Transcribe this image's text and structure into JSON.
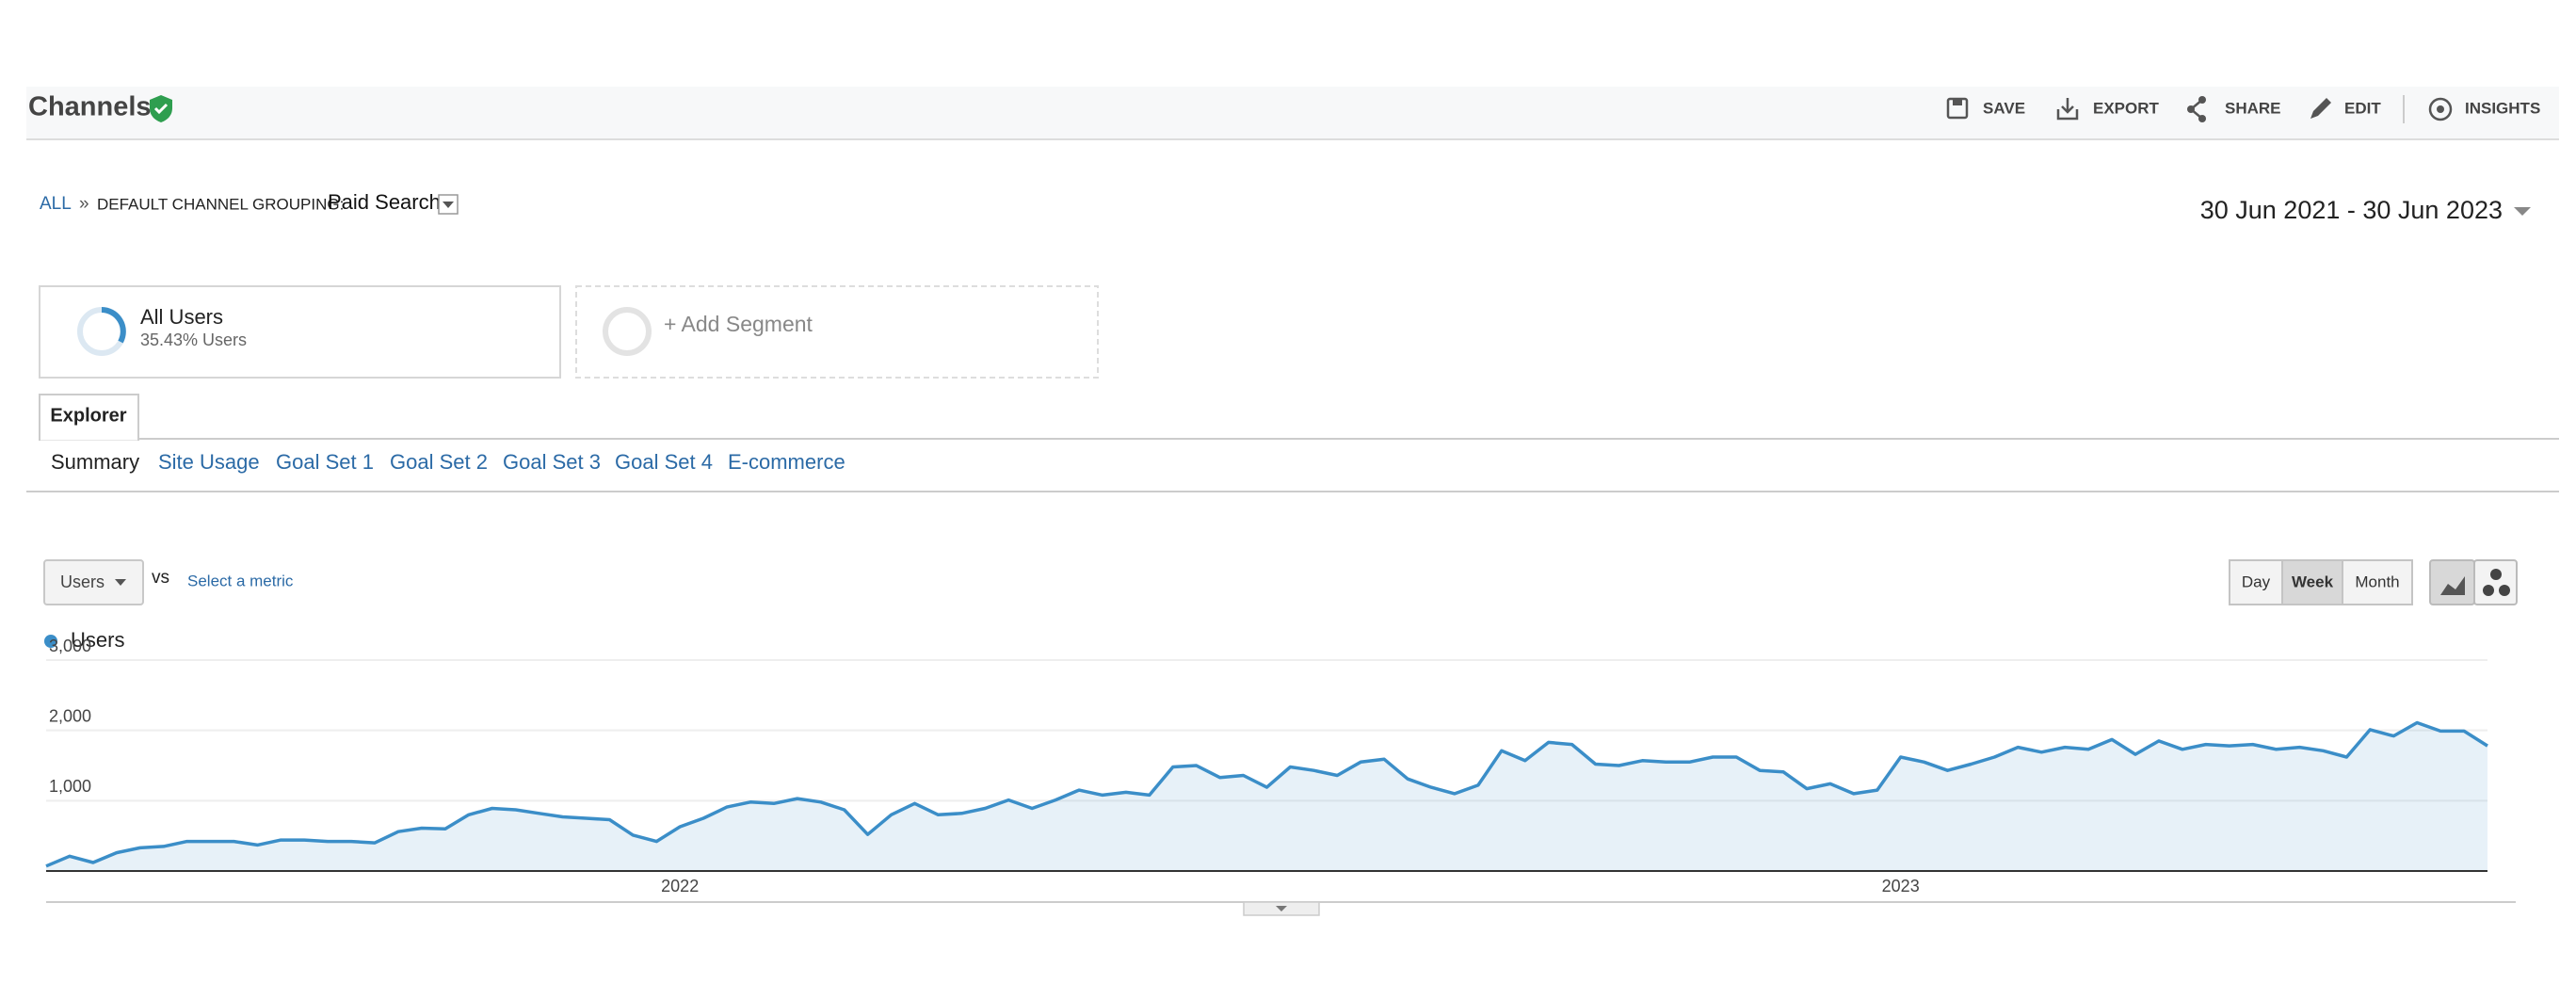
{
  "header": {
    "title": "Channels",
    "actions": [
      "SAVE",
      "EXPORT",
      "SHARE",
      "EDIT",
      "INSIGHTS"
    ]
  },
  "breadcrumb": {
    "all": "ALL",
    "separator": "»",
    "grouping_label": "DEFAULT CHANNEL GROUPING:",
    "grouping_value": "Paid Search"
  },
  "date_range": "30 Jun 2021 - 30 Jun 2023",
  "segments": [
    {
      "name": "All Users",
      "detail": "35.43% Users"
    },
    {
      "name": "+ Add Segment"
    }
  ],
  "tabs": {
    "explorer": "Explorer",
    "subtabs": [
      "Summary",
      "Site Usage",
      "Goal Set 1",
      "Goal Set 2",
      "Goal Set 3",
      "Goal Set 4",
      "E-commerce"
    ]
  },
  "controls": {
    "metric": "Users",
    "vs": "vs",
    "select_metric": "Select a metric",
    "granularity": [
      "Day",
      "Week",
      "Month"
    ],
    "granularity_selected": "Week"
  },
  "chart_data": {
    "type": "line",
    "categories": [
      null,
      null,
      null,
      null,
      null,
      null,
      null,
      null,
      null,
      null,
      null,
      null,
      null,
      null,
      null,
      null,
      null,
      null,
      null,
      null,
      null,
      null,
      null,
      null,
      null,
      null,
      null,
      "2022",
      null,
      null,
      null,
      null,
      null,
      null,
      null,
      null,
      null,
      null,
      null,
      null,
      null,
      null,
      null,
      null,
      null,
      null,
      null,
      null,
      null,
      null,
      null,
      null,
      null,
      null,
      null,
      null,
      null,
      null,
      null,
      null,
      null,
      null,
      null,
      null,
      null,
      null,
      null,
      null,
      null,
      null,
      null,
      null,
      null,
      null,
      null,
      null,
      null,
      null,
      null,
      "2023",
      null,
      null,
      null,
      null,
      null,
      null,
      null,
      null,
      null,
      null,
      null,
      null,
      null,
      null,
      null,
      null,
      null,
      null,
      null,
      null,
      null,
      null,
      null,
      null,
      null
    ],
    "series": [
      {
        "name": "Users",
        "color": "#3b8ec8",
        "values": [
          70,
          210,
          120,
          260,
          330,
          350,
          420,
          420,
          420,
          370,
          440,
          440,
          420,
          420,
          400,
          560,
          610,
          600,
          800,
          890,
          870,
          820,
          770,
          750,
          730,
          510,
          420,
          630,
          750,
          910,
          980,
          960,
          1030,
          980,
          870,
          520,
          800,
          960,
          800,
          820,
          890,
          1010,
          890,
          1010,
          1150,
          1080,
          1120,
          1080,
          1480,
          1500,
          1330,
          1360,
          1190,
          1480,
          1430,
          1360,
          1550,
          1590,
          1310,
          1190,
          1100,
          1220,
          1710,
          1570,
          1830,
          1800,
          1520,
          1500,
          1570,
          1550,
          1550,
          1620,
          1620,
          1430,
          1410,
          1170,
          1240,
          1100,
          1150,
          1620,
          1550,
          1430,
          1520,
          1620,
          1760,
          1690,
          1760,
          1730,
          1870,
          1660,
          1850,
          1730,
          1800,
          1780,
          1800,
          1730,
          1760,
          1710,
          1620,
          2010,
          1920,
          2110,
          1990,
          1990,
          1780
        ]
      }
    ],
    "ylim": [
      0,
      3000
    ],
    "yticks": [
      {
        "value": 1000,
        "label": "1,000"
      },
      {
        "value": 2000,
        "label": "2,000"
      },
      {
        "value": 3000,
        "label": "3,000"
      }
    ],
    "grid": true,
    "fill_area": true
  }
}
